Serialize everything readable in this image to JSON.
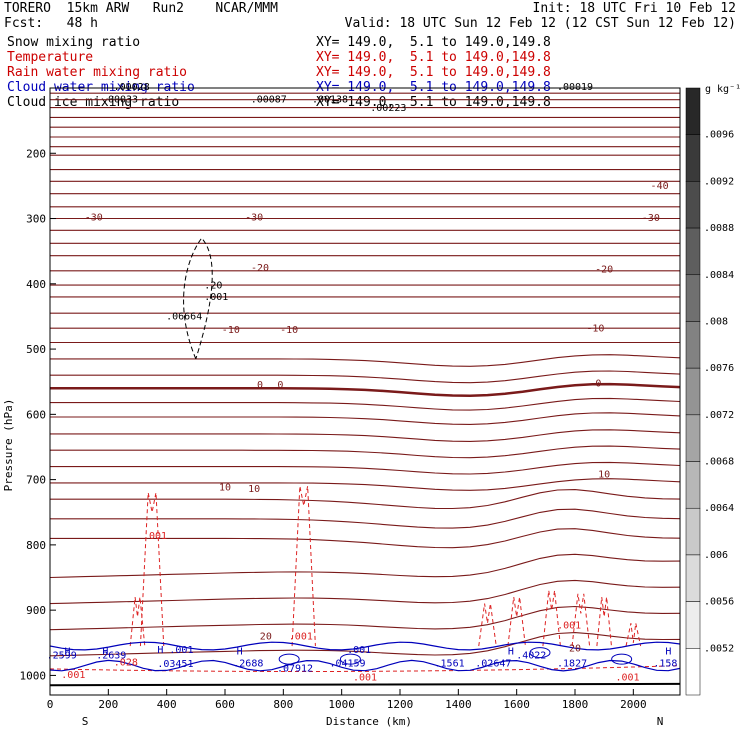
{
  "header": {
    "model": "TORERO  15km ARW   Run2    NCAR/MMM",
    "init": "Init: 18 UTC Fri 10 Feb 12",
    "fcst": "Fcst:   48 h",
    "valid": "Valid: 18 UTC Sun 12 Feb 12 (12 CST Sun 12 Feb 12)"
  },
  "fields": [
    {
      "name": "Snow mixing ratio",
      "xy": "XY= 149.0,  5.1 to 149.0,149.8",
      "color": "#000000"
    },
    {
      "name": "Temperature",
      "xy": "XY= 149.0,  5.1 to 149.0,149.8",
      "color": "#cc0000"
    },
    {
      "name": "Rain water mixing ratio",
      "xy": "XY= 149.0,  5.1 to 149.0,149.8",
      "color": "#cc0000"
    },
    {
      "name": "Cloud water mixing ratio",
      "xy": "XY= 149.0,  5.1 to 149.0,149.8",
      "color": "#0000bb"
    },
    {
      "name": "Cloud ice mixing ratio",
      "xy": "XY= 149.0,  5.1 to 149.0,149.8",
      "color": "#000000"
    }
  ],
  "chart_data": {
    "type": "cross-section contour",
    "xlabel": "Distance (km)",
    "ylabel": "Pressure (hPa)",
    "xlim": [
      0,
      2160
    ],
    "ylim": [
      1030,
      100
    ],
    "x_ticks": [
      0,
      200,
      400,
      600,
      800,
      1000,
      1200,
      1400,
      1600,
      1800,
      2000
    ],
    "y_ticks": [
      200,
      300,
      400,
      500,
      600,
      700,
      800,
      900,
      1000
    ],
    "x_endpoints": {
      "left": "S",
      "right": "N"
    },
    "temperature_labels": [
      {
        "x": 150,
        "p": 303,
        "text": "-30"
      },
      {
        "x": 700,
        "p": 303,
        "text": "-30"
      },
      {
        "x": 2060,
        "p": 304,
        "text": "-30"
      },
      {
        "x": 2090,
        "p": 255,
        "text": "-40"
      },
      {
        "x": 720,
        "p": 380,
        "text": "-20"
      },
      {
        "x": 1900,
        "p": 383,
        "text": "-20"
      },
      {
        "x": 620,
        "p": 475,
        "text": "-10"
      },
      {
        "x": 820,
        "p": 475,
        "text": "-10"
      },
      {
        "x": 1870,
        "p": 473,
        "text": "-10"
      },
      {
        "x": 720,
        "p": 560,
        "text": "0"
      },
      {
        "x": 790,
        "p": 560,
        "text": "0"
      },
      {
        "x": 1880,
        "p": 557,
        "text": "0"
      },
      {
        "x": 600,
        "p": 717,
        "text": "10"
      },
      {
        "x": 700,
        "p": 719,
        "text": "10"
      },
      {
        "x": 1900,
        "p": 697,
        "text": "10"
      },
      {
        "x": 740,
        "p": 945,
        "text": "20"
      },
      {
        "x": 1800,
        "p": 963,
        "text": "20"
      }
    ],
    "rain_labels": [
      {
        "x": 360,
        "p": 791,
        "text": ".001"
      },
      {
        "x": 860,
        "p": 945,
        "text": ".001"
      },
      {
        "x": 1780,
        "p": 928,
        "text": ".001"
      },
      {
        "x": 80,
        "p": 1004,
        "text": ".001"
      },
      {
        "x": 260,
        "p": 985,
        "text": ".028"
      },
      {
        "x": 1980,
        "p": 1008,
        "text": ".001"
      },
      {
        "x": 1080,
        "p": 1008,
        "text": ".001"
      }
    ],
    "cloud_water_labels": [
      {
        "x": 60,
        "p": 968,
        "text": "H"
      },
      {
        "x": 190,
        "p": 968,
        "text": "H"
      },
      {
        "x": 430,
        "p": 966,
        "text": "H .001"
      },
      {
        "x": 650,
        "p": 968,
        "text": "H"
      },
      {
        "x": 1060,
        "p": 966,
        "text": ".001"
      },
      {
        "x": 1580,
        "p": 968,
        "text": "H"
      },
      {
        "x": 2120,
        "p": 968,
        "text": "H"
      },
      {
        "x": 40,
        "p": 974,
        "text": ".2599"
      },
      {
        "x": 210,
        "p": 974,
        "text": ".2639"
      },
      {
        "x": 430,
        "p": 987,
        "text": ".03451"
      },
      {
        "x": 680,
        "p": 986,
        "text": ".2688"
      },
      {
        "x": 840,
        "p": 994,
        "text": ".07912"
      },
      {
        "x": 1020,
        "p": 986,
        "text": ".04159"
      },
      {
        "x": 1370,
        "p": 986,
        "text": ".1561"
      },
      {
        "x": 1520,
        "p": 986,
        "text": ".02647"
      },
      {
        "x": 1650,
        "p": 974,
        "text": ".4022"
      },
      {
        "x": 1790,
        "p": 986,
        "text": ".1827"
      },
      {
        "x": 2110,
        "p": 986,
        "text": ".158"
      }
    ],
    "snow_labels": [
      {
        "x": 240,
        "p": 122,
        "text": ".00033"
      },
      {
        "x": 750,
        "p": 122,
        "text": ".00087"
      },
      {
        "x": 960,
        "p": 122,
        "text": ".00138"
      },
      {
        "x": 1160,
        "p": 135,
        "text": ".00223"
      },
      {
        "x": 1800,
        "p": 103,
        "text": ".00019"
      },
      {
        "x": 280,
        "p": 103,
        "text": ".00028"
      }
    ],
    "ice_labels": [
      {
        "x": 460,
        "p": 455,
        "text": ".06664"
      },
      {
        "x": 570,
        "p": 425,
        "text": ".001"
      },
      {
        "x": 560,
        "p": 407,
        "text": ".20"
      }
    ],
    "colorbar": {
      "unit": "g kg⁻¹",
      "ticks": [
        ".0096",
        ".0092",
        ".0088",
        ".0084",
        ".008",
        ".0076",
        ".0072",
        ".0068",
        ".0064",
        ".006",
        ".0056",
        ".0052"
      ]
    }
  }
}
